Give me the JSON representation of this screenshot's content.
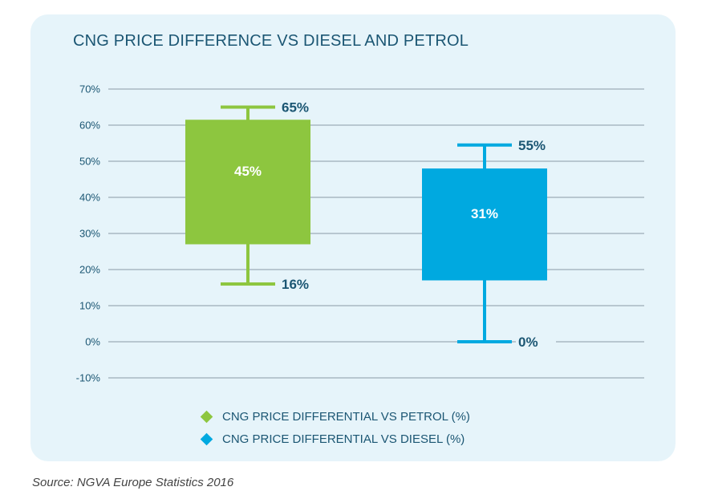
{
  "chart_data": {
    "type": "box",
    "title": "CNG PRICE DIFFERENCE VS DIESEL AND PETROL",
    "ylim": [
      -10,
      70
    ],
    "yticks": [
      70,
      60,
      50,
      40,
      30,
      20,
      10,
      0,
      -10
    ],
    "ytick_labels": [
      "70%",
      "60%",
      "50%",
      "40%",
      "30%",
      "20%",
      "10%",
      "0%",
      "-10%"
    ],
    "grid": true,
    "legend_position": "bottom",
    "series": [
      {
        "name": "CNG PRICE DIFFERENTIAL VS PETROL (%)",
        "color": "#8dc63f",
        "min": 16,
        "q1": 27,
        "q3": 61.5,
        "max": 65,
        "min_label": "16%",
        "max_label": "65%",
        "center_label": "45%"
      },
      {
        "name": "CNG PRICE DIFFERENTIAL VS DIESEL (%)",
        "color": "#00a9e0",
        "min": 0,
        "q1": 17,
        "q3": 48,
        "max": 54.5,
        "min_label": "0%",
        "max_label": "55%",
        "center_label": "31%"
      }
    ]
  },
  "source": "Source: NGVA Europe Statistics 2016"
}
